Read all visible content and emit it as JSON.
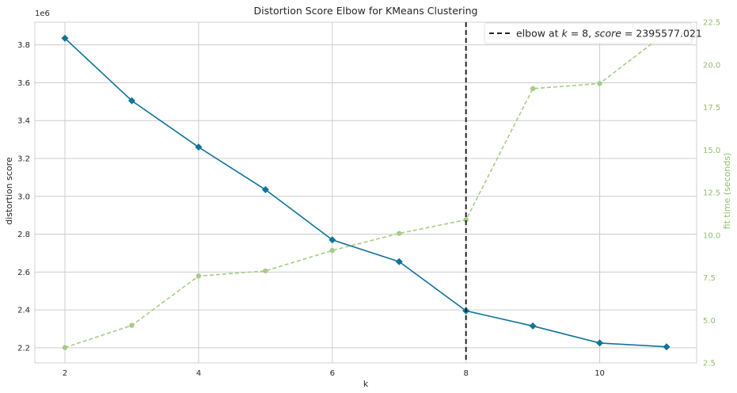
{
  "chart_data": {
    "type": "line",
    "title": "Distortion Score Elbow for KMeans Clustering",
    "xlabel": "k",
    "ylabel": "distortion score",
    "y2label": "fit time (seconds)",
    "y_multiplier": "1e6",
    "xlim": [
      1.55,
      11.45
    ],
    "ylim": [
      2.12,
      3.92
    ],
    "y2lim": [
      2.5,
      22.5
    ],
    "x_ticks": [
      2,
      4,
      6,
      8,
      10
    ],
    "y_ticks": [
      2.2,
      2.4,
      2.6,
      2.8,
      3.0,
      3.2,
      3.4,
      3.6,
      3.8
    ],
    "y_tick_labels": [
      "2.2",
      "2.4",
      "2.6",
      "2.8",
      "3.0",
      "3.2",
      "3.4",
      "3.6",
      "3.8"
    ],
    "y2_ticks": [
      2.5,
      5.0,
      7.5,
      10.0,
      12.5,
      15.0,
      17.5,
      20.0,
      22.5
    ],
    "y2_tick_labels": [
      "2.5",
      "5.0",
      "7.5",
      "10.0",
      "12.5",
      "15.0",
      "17.5",
      "20.0",
      "22.5"
    ],
    "x": [
      2,
      3,
      4,
      5,
      6,
      7,
      8,
      9,
      10,
      11
    ],
    "series": [
      {
        "name": "distortion score",
        "axis": "left",
        "values": [
          3.835,
          3.505,
          3.26,
          3.035,
          2.77,
          2.655,
          2.395,
          2.315,
          2.225,
          2.205
        ],
        "color": "#0e7499"
      },
      {
        "name": "fit time (seconds)",
        "axis": "right",
        "values": [
          3.4,
          4.7,
          7.6,
          7.9,
          9.1,
          10.1,
          10.9,
          18.6,
          18.9,
          21.9
        ],
        "color": "#a6cc85"
      }
    ],
    "elbow": {
      "k": 8,
      "legend_prefix": "elbow at ",
      "legend_k": "k",
      "legend_eq1": " = 8, ",
      "legend_score": "score",
      "legend_eq2": " = 2395577.021"
    },
    "grid": true,
    "legend_position": "top-right"
  }
}
